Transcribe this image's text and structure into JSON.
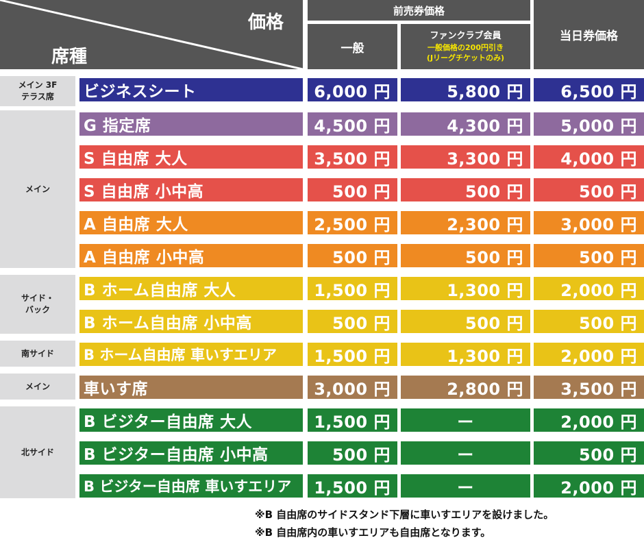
{
  "header": {
    "price_label": "価格",
    "seat_type_label": "席種",
    "advance_label": "前売券価格",
    "general_label": "一般",
    "fanclub_label": "ファンクラブ会員",
    "fanclub_note_1": "一般価格の200円引き",
    "fanclub_note_2": "(Jリーグチケットのみ)",
    "sameday_label": "当日券価格"
  },
  "areas": [
    {
      "label": "メイン 3F\nテラス席"
    },
    {
      "label": "メイン"
    },
    {
      "label": "サイド・\nバック"
    },
    {
      "label": "南サイド"
    },
    {
      "label": "メイン"
    },
    {
      "label": "北サイド"
    }
  ],
  "rows": [
    {
      "seat": "ビジネスシート",
      "general": "6,000 円",
      "fanclub": "5,800 円",
      "sameday": "6,500 円",
      "color": "#2e3192"
    },
    {
      "seat": "G 指定席",
      "general": "4,500 円",
      "fanclub": "4,300 円",
      "sameday": "5,000 円",
      "color": "#8e6a9e"
    },
    {
      "seat": "S 自由席 大人",
      "general": "3,500 円",
      "fanclub": "3,300 円",
      "sameday": "4,000 円",
      "color": "#e5514a"
    },
    {
      "seat": "S 自由席 小中高",
      "general": "500 円",
      "fanclub": "500 円",
      "sameday": "500 円",
      "color": "#e5514a"
    },
    {
      "seat": "A 自由席 大人",
      "general": "2,500 円",
      "fanclub": "2,300 円",
      "sameday": "3,000 円",
      "color": "#ef8a22"
    },
    {
      "seat": "A 自由席 小中高",
      "general": "500 円",
      "fanclub": "500 円",
      "sameday": "500 円",
      "color": "#ef8a22"
    },
    {
      "seat": "B ホーム自由席 大人",
      "general": "1,500 円",
      "fanclub": "1,300 円",
      "sameday": "2,000 円",
      "color": "#e9c317"
    },
    {
      "seat": "B ホーム自由席 小中高",
      "general": "500 円",
      "fanclub": "500 円",
      "sameday": "500 円",
      "color": "#e9c317"
    },
    {
      "seat": "B ホーム自由席 車いすエリア",
      "general": "1,500 円",
      "fanclub": "1,300 円",
      "sameday": "2,000 円",
      "color": "#e9c317"
    },
    {
      "seat": "車いす席",
      "general": "3,000 円",
      "fanclub": "2,800 円",
      "sameday": "3,500 円",
      "color": "#a57a51"
    },
    {
      "seat": "B ビジター自由席 大人",
      "general": "1,500 円",
      "fanclub": "ー",
      "sameday": "2,000 円",
      "color": "#1e8336"
    },
    {
      "seat": "B ビジター自由席 小中高",
      "general": "500 円",
      "fanclub": "ー",
      "sameday": "500 円",
      "color": "#1e8336"
    },
    {
      "seat": "B ビジター自由席 車いすエリア",
      "general": "1,500 円",
      "fanclub": "ー",
      "sameday": "2,000 円",
      "color": "#1e8336"
    }
  ],
  "footnotes": [
    "※B 自由席のサイドスタンド下層に車いすエリアを設けました。",
    "※B 自由席内の車いすエリアも自由席となります。"
  ]
}
